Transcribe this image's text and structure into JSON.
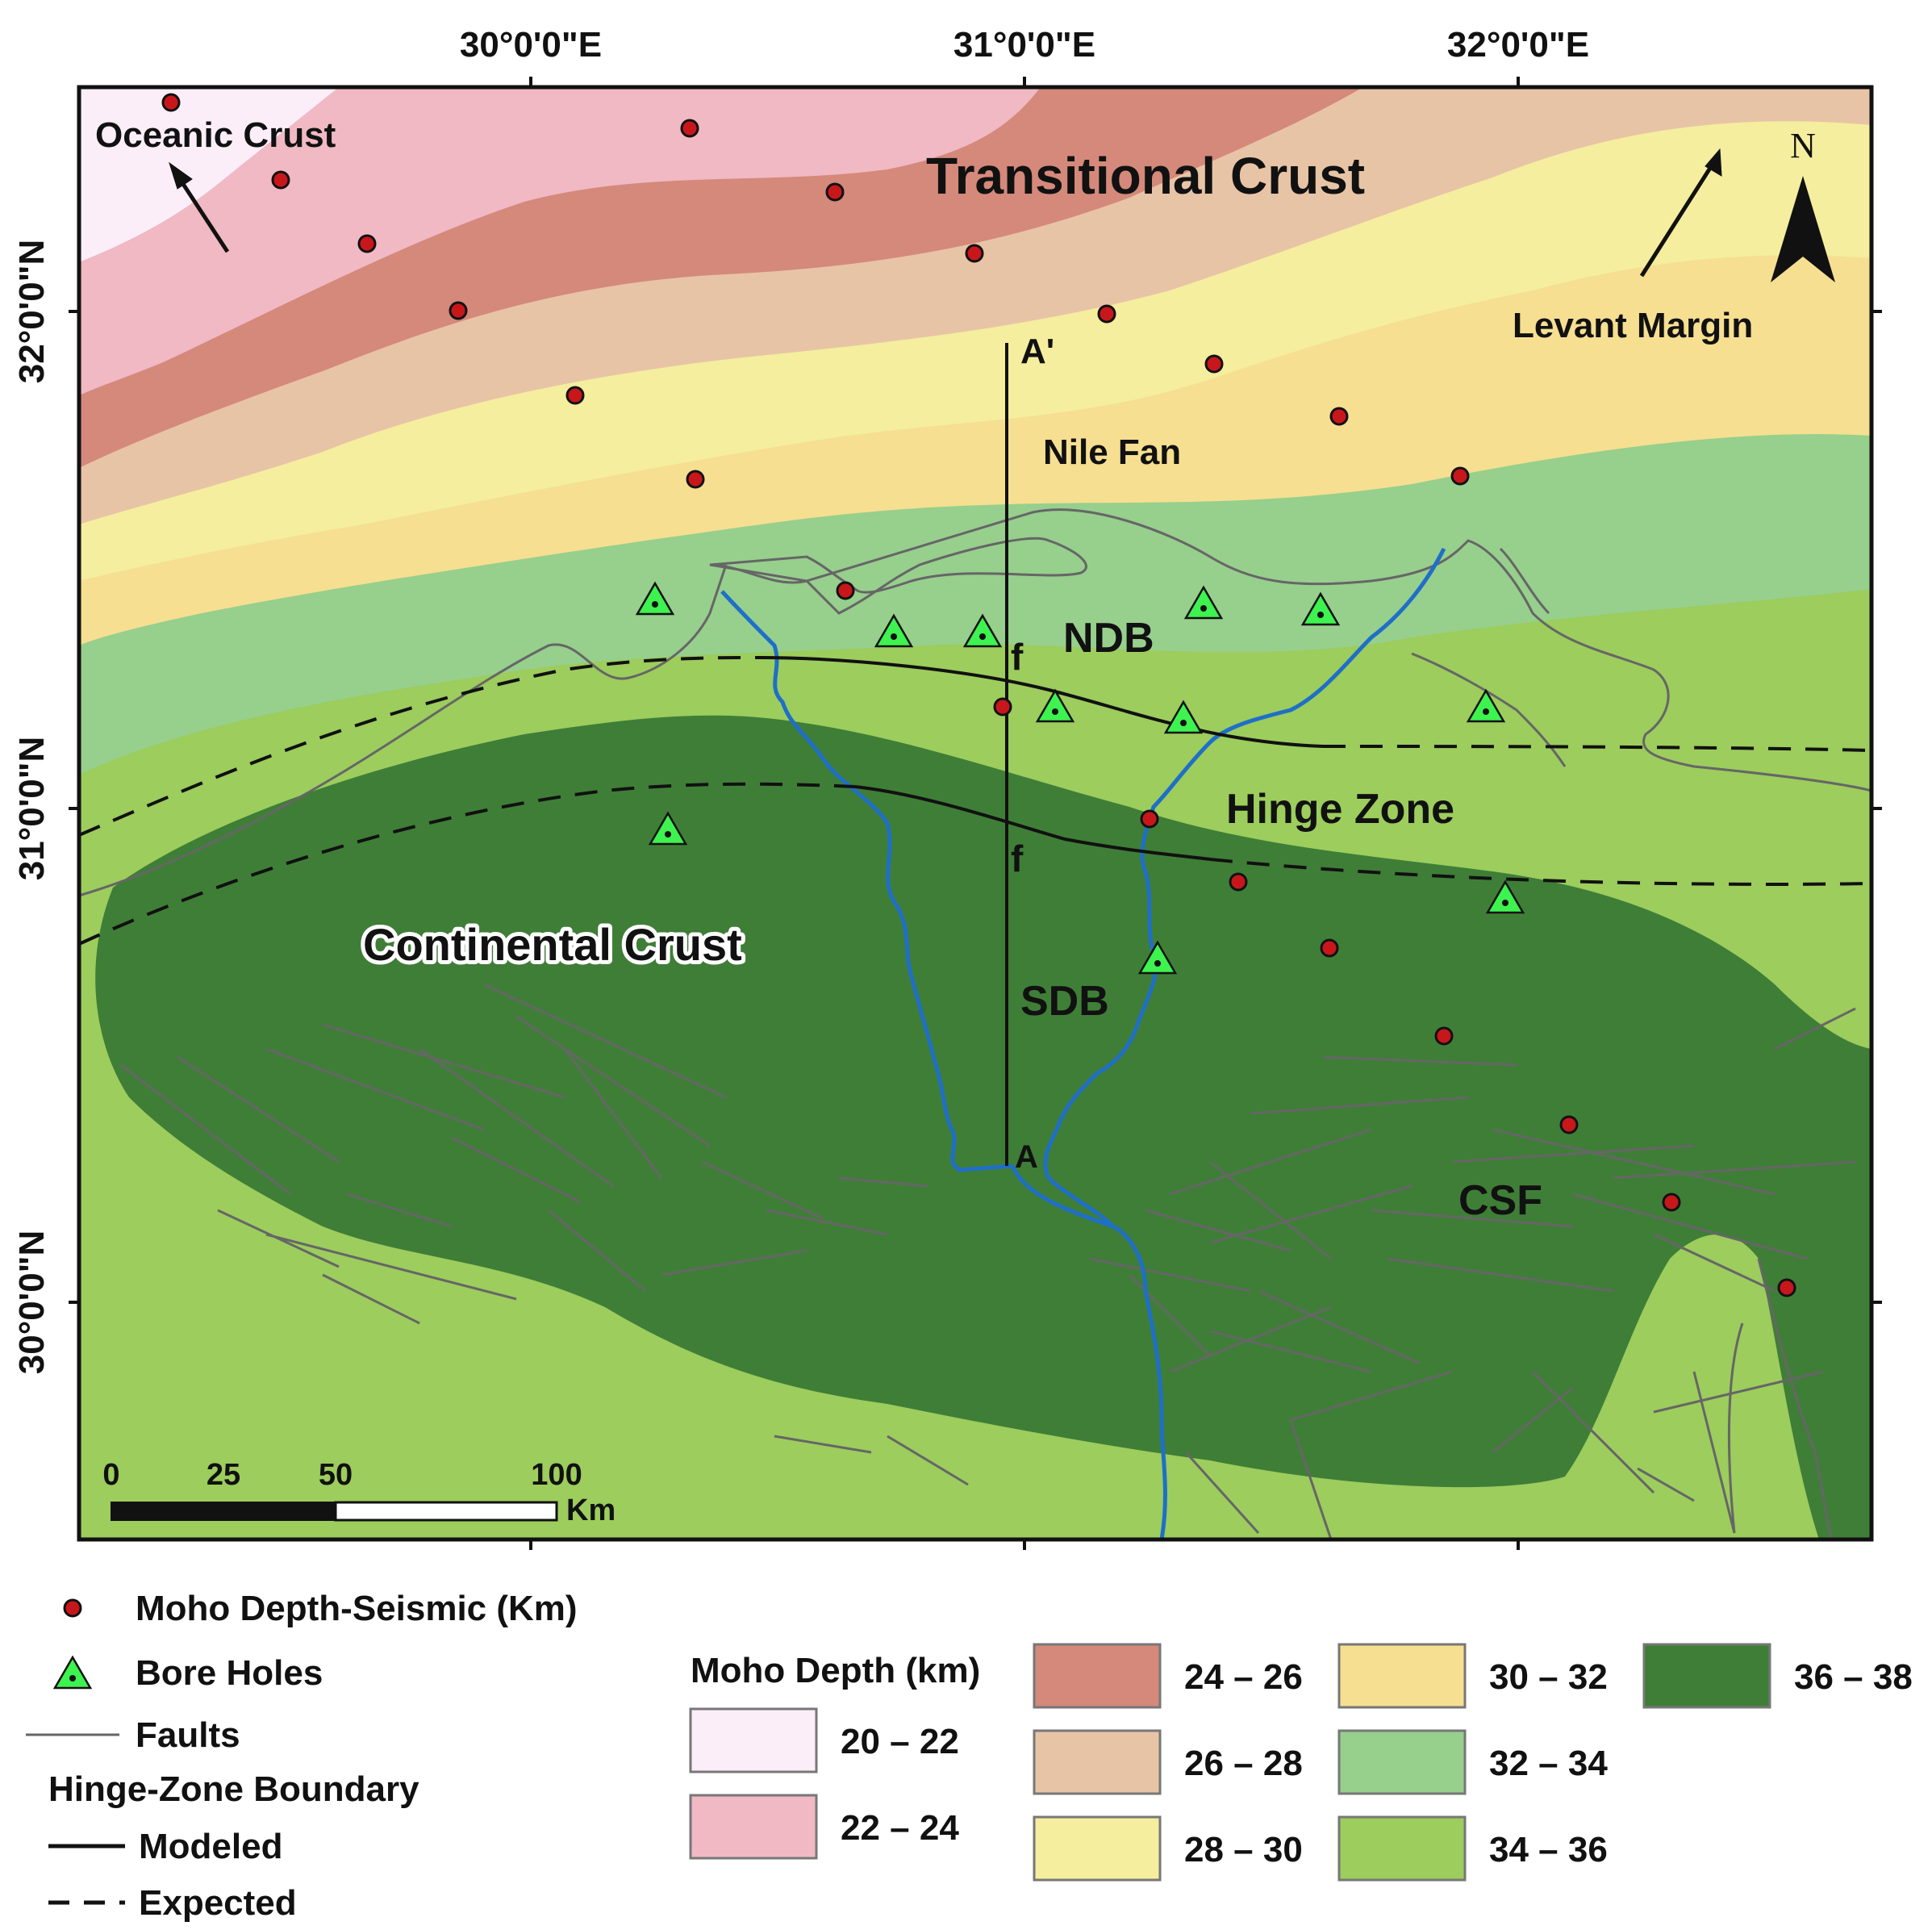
{
  "axes": {
    "top_ticks": [
      "30°0'0\"E",
      "31°0'0\"E",
      "32°0'0\"E"
    ],
    "left_ticks": [
      "32°0'0\"N",
      "31°0'0\"N",
      "30°0'0\"N"
    ]
  },
  "map_labels": {
    "oceanic_crust": "Oceanic Crust",
    "transitional_crust": "Transitional Crust",
    "levant_margin": "Levant Margin",
    "north": "N",
    "nile_fan": "Nile Fan",
    "a_prime": "A'",
    "a": "A",
    "ndb": "NDB",
    "f_upper": "f",
    "f_lower": "f",
    "hinge_zone": "Hinge Zone",
    "continental_crust": "Continental Crust",
    "sdb": "SDB",
    "csf": "CSF"
  },
  "scale_bar": {
    "ticks": [
      "0",
      "25",
      "50",
      "100"
    ],
    "unit": "Km"
  },
  "legend_left": {
    "moho_seismic": "Moho Depth-Seismic (Km)",
    "bore_holes": "Bore Holes",
    "faults": "Faults",
    "hinge_title": "Hinge-Zone Boundary",
    "modeled": "Modeled",
    "expected": "Expected"
  },
  "legend_depth": {
    "title": "Moho Depth (km)",
    "classes": [
      {
        "label": "20 – 22",
        "color": "#fbeef8"
      },
      {
        "label": "22 – 24",
        "color": "#f0b9c3"
      },
      {
        "label": "24 – 26",
        "color": "#d4897b"
      },
      {
        "label": "26 – 28",
        "color": "#e8c4a6"
      },
      {
        "label": "28 – 30",
        "color": "#f4ee9e"
      },
      {
        "label": "30 – 32",
        "color": "#f6df91"
      },
      {
        "label": "32 – 34",
        "color": "#97cf8d"
      },
      {
        "label": "34 – 36",
        "color": "#9ccd5d"
      },
      {
        "label": "36 – 38",
        "color": "#3f7e37"
      }
    ]
  },
  "colors": {
    "moho_point": "#c8171b",
    "bore_hole": "#3ef24f",
    "river": "#1f6fc8",
    "fault": "#666666"
  }
}
